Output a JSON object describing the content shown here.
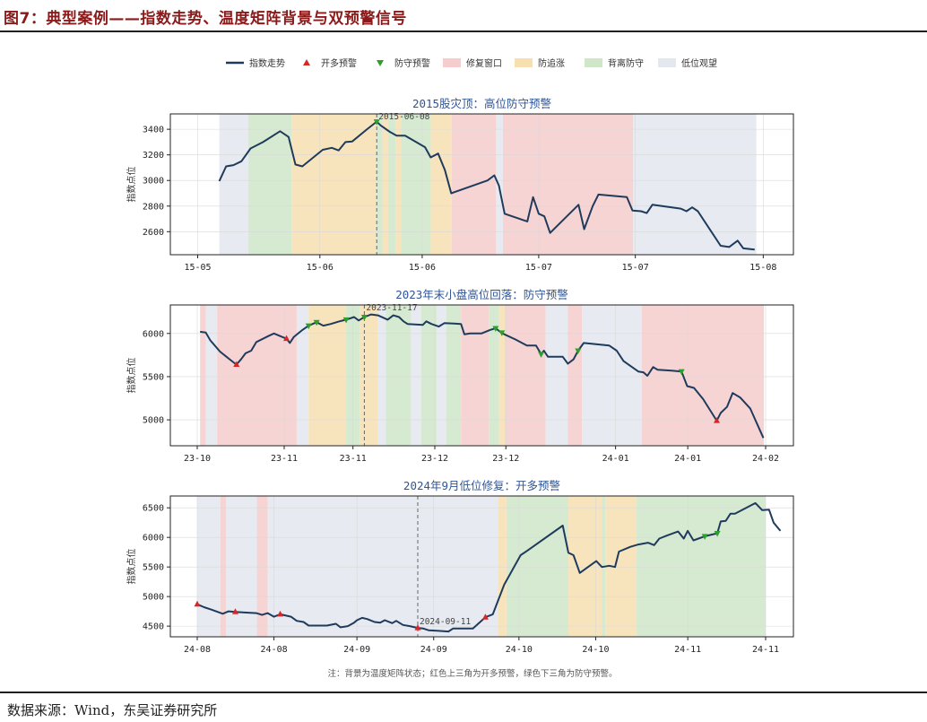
{
  "figure_title": "图7：典型案例——指数走势、温度矩阵背景与双预警信号",
  "source": "数据来源：Wind，东吴证券研究所",
  "note": "注：背景为温度矩阵状态；红色上三角为开多预警，绿色下三角为防守预警。",
  "legend": [
    {
      "label": "指数走势",
      "kind": "line",
      "color": "#1f3b5c"
    },
    {
      "label": "开多预警",
      "kind": "up",
      "color": "#d62728"
    },
    {
      "label": "防守预警",
      "kind": "down",
      "color": "#2ca02c"
    },
    {
      "label": "修复窗口",
      "kind": "patch",
      "color": "#f6cccc"
    },
    {
      "label": "防追涨",
      "kind": "patch",
      "color": "#f7dfb0"
    },
    {
      "label": "背离防守",
      "kind": "patch",
      "color": "#cfe6c9"
    },
    {
      "label": "低位观望",
      "kind": "patch",
      "color": "#e3e8ef"
    }
  ],
  "colors": {
    "line": "#1f3b5c",
    "buy": "#d62728",
    "sell": "#2ca02c",
    "repair": "#f6cccc",
    "chase": "#f7dfb0",
    "diverge": "#cfe6c9",
    "watch": "#e3e8ef",
    "title": "#2f5597"
  },
  "chart_data": [
    {
      "type": "line",
      "title": "2015股灾顶：高位防守预警",
      "ylabel": "指数点位",
      "xlim": [
        0,
        100
      ],
      "ylim": [
        2420,
        3520
      ],
      "yticks": [
        2600,
        2800,
        3000,
        3200,
        3400
      ],
      "xticks": [
        {
          "x": 0,
          "label": "15-05"
        },
        {
          "x": 21.5,
          "label": "15-06"
        },
        {
          "x": 39.5,
          "label": "15-06"
        },
        {
          "x": 60,
          "label": "15-07"
        },
        {
          "x": 77,
          "label": "15-07"
        },
        {
          "x": 99.5,
          "label": "15-08"
        }
      ],
      "vline": {
        "x": 31.5,
        "label": "2015-06-08"
      },
      "bands": [
        {
          "x0": 3.8,
          "x1": 8.9,
          "state": "watch"
        },
        {
          "x0": 8.9,
          "x1": 16.5,
          "state": "diverge"
        },
        {
          "x0": 16.5,
          "x1": 31.5,
          "state": "chase"
        },
        {
          "x0": 31.5,
          "x1": 32.5,
          "state": "diverge"
        },
        {
          "x0": 32.5,
          "x1": 33.5,
          "state": "chase"
        },
        {
          "x0": 33.5,
          "x1": 34.8,
          "state": "diverge"
        },
        {
          "x0": 34.8,
          "x1": 35.8,
          "state": "chase"
        },
        {
          "x0": 35.8,
          "x1": 41,
          "state": "diverge"
        },
        {
          "x0": 41,
          "x1": 44.7,
          "state": "chase"
        },
        {
          "x0": 44.7,
          "x1": 52.5,
          "state": "repair"
        },
        {
          "x0": 52.5,
          "x1": 53.7,
          "state": "watch"
        },
        {
          "x0": 53.7,
          "x1": 76.6,
          "state": "repair"
        },
        {
          "x0": 76.6,
          "x1": 98.3,
          "state": "watch"
        }
      ],
      "points": [
        [
          3.8,
          2995
        ],
        [
          5,
          3110
        ],
        [
          6.3,
          3120
        ],
        [
          7.7,
          3150
        ],
        [
          9.3,
          3250
        ],
        [
          11.5,
          3300
        ],
        [
          14.5,
          3385
        ],
        [
          16,
          3340
        ],
        [
          17.2,
          3125
        ],
        [
          18.4,
          3110
        ],
        [
          22,
          3240
        ],
        [
          23.6,
          3255
        ],
        [
          24.8,
          3235
        ],
        [
          26,
          3300
        ],
        [
          27.2,
          3305
        ],
        [
          29.8,
          3400
        ],
        [
          31.5,
          3460
        ],
        [
          32.2,
          3430
        ],
        [
          33.8,
          3380
        ],
        [
          35,
          3350
        ],
        [
          36.5,
          3350
        ],
        [
          40,
          3260
        ],
        [
          41,
          3180
        ],
        [
          42.3,
          3210
        ],
        [
          43.5,
          3080
        ],
        [
          44.6,
          2900
        ],
        [
          51,
          3000
        ],
        [
          52.2,
          3040
        ],
        [
          53,
          2960
        ],
        [
          54,
          2740
        ],
        [
          58,
          2680
        ],
        [
          59,
          2870
        ],
        [
          60,
          2740
        ],
        [
          61,
          2720
        ],
        [
          62,
          2590
        ],
        [
          67,
          2810
        ],
        [
          68,
          2620
        ],
        [
          69.5,
          2800
        ],
        [
          70.5,
          2890
        ],
        [
          75.5,
          2870
        ],
        [
          76.5,
          2765
        ],
        [
          78,
          2760
        ],
        [
          79,
          2745
        ],
        [
          80,
          2810
        ],
        [
          85,
          2780
        ],
        [
          86,
          2760
        ],
        [
          87,
          2790
        ],
        [
          88,
          2760
        ],
        [
          92,
          2490
        ],
        [
          93.5,
          2480
        ],
        [
          95,
          2530
        ],
        [
          96,
          2470
        ],
        [
          98,
          2460
        ]
      ],
      "buy": [],
      "sell": [
        [
          31.5,
          3460
        ]
      ]
    },
    {
      "type": "line",
      "title": "2023年末小盘高位回落：防守预警",
      "ylabel": "指数点位",
      "xlim": [
        0,
        100
      ],
      "ylim": [
        4700,
        6330
      ],
      "yticks": [
        5000,
        5500,
        6000
      ],
      "xticks": [
        {
          "x": 0,
          "label": "23-10"
        },
        {
          "x": 15.3,
          "label": "23-11"
        },
        {
          "x": 27.4,
          "label": "23-11"
        },
        {
          "x": 41.8,
          "label": "23-12"
        },
        {
          "x": 54.3,
          "label": "23-12"
        },
        {
          "x": 73.6,
          "label": "24-01"
        },
        {
          "x": 86.3,
          "label": "24-01"
        },
        {
          "x": 100,
          "label": "24-02"
        }
      ],
      "vline": {
        "x": 29.4,
        "label": "2023-11-17"
      },
      "bands": [
        {
          "x0": 0.5,
          "x1": 1.5,
          "state": "repair"
        },
        {
          "x0": 1.5,
          "x1": 3.5,
          "state": "watch"
        },
        {
          "x0": 3.5,
          "x1": 17.5,
          "state": "repair"
        },
        {
          "x0": 17.5,
          "x1": 19.6,
          "state": "watch"
        },
        {
          "x0": 19.6,
          "x1": 26.2,
          "state": "chase"
        },
        {
          "x0": 26.2,
          "x1": 28.6,
          "state": "diverge"
        },
        {
          "x0": 28.6,
          "x1": 31.8,
          "state": "chase"
        },
        {
          "x0": 31.8,
          "x1": 33.2,
          "state": "watch"
        },
        {
          "x0": 33.2,
          "x1": 37.6,
          "state": "diverge"
        },
        {
          "x0": 37.6,
          "x1": 39.4,
          "state": "watch"
        },
        {
          "x0": 39.4,
          "x1": 42.1,
          "state": "diverge"
        },
        {
          "x0": 42.1,
          "x1": 43.8,
          "state": "watch"
        },
        {
          "x0": 43.8,
          "x1": 46.4,
          "state": "diverge"
        },
        {
          "x0": 46.4,
          "x1": 51.3,
          "state": "repair"
        },
        {
          "x0": 51.3,
          "x1": 53.1,
          "state": "diverge"
        },
        {
          "x0": 53.1,
          "x1": 54.1,
          "state": "chase"
        },
        {
          "x0": 54.1,
          "x1": 61.3,
          "state": "repair"
        },
        {
          "x0": 61.3,
          "x1": 65.2,
          "state": "watch"
        },
        {
          "x0": 65.2,
          "x1": 67.7,
          "state": "repair"
        },
        {
          "x0": 67.7,
          "x1": 78.2,
          "state": "watch"
        },
        {
          "x0": 78.2,
          "x1": 99.7,
          "state": "repair"
        }
      ],
      "points": [
        [
          0.5,
          6020
        ],
        [
          1.5,
          6010
        ],
        [
          2.3,
          5920
        ],
        [
          4,
          5790
        ],
        [
          5.9,
          5690
        ],
        [
          6.9,
          5640
        ],
        [
          7.7,
          5700
        ],
        [
          8.5,
          5770
        ],
        [
          9.5,
          5800
        ],
        [
          10.4,
          5900
        ],
        [
          12.5,
          5970
        ],
        [
          13.5,
          6000
        ],
        [
          14.9,
          5960
        ],
        [
          15.7,
          5940
        ],
        [
          16.3,
          5890
        ],
        [
          17,
          5960
        ],
        [
          18.5,
          6040
        ],
        [
          19.6,
          6090
        ],
        [
          21,
          6130
        ],
        [
          22.2,
          6090
        ],
        [
          23.5,
          6110
        ],
        [
          25,
          6140
        ],
        [
          26.2,
          6160
        ],
        [
          27.6,
          6190
        ],
        [
          28.4,
          6150
        ],
        [
          29.4,
          6190
        ],
        [
          30.6,
          6220
        ],
        [
          31.8,
          6210
        ],
        [
          33.5,
          6160
        ],
        [
          34.5,
          6210
        ],
        [
          35.5,
          6190
        ],
        [
          36.3,
          6140
        ],
        [
          37,
          6110
        ],
        [
          39.7,
          6100
        ],
        [
          40.3,
          6140
        ],
        [
          41.2,
          6110
        ],
        [
          42.5,
          6080
        ],
        [
          43.5,
          6120
        ],
        [
          46.4,
          6110
        ],
        [
          47,
          5990
        ],
        [
          48,
          6000
        ],
        [
          50,
          6000
        ],
        [
          51.5,
          6040
        ],
        [
          52.5,
          6060
        ],
        [
          53.3,
          6020
        ],
        [
          54,
          5990
        ],
        [
          56,
          5930
        ],
        [
          58,
          5860
        ],
        [
          59.6,
          5860
        ],
        [
          60.5,
          5760
        ],
        [
          61,
          5800
        ],
        [
          61.7,
          5730
        ],
        [
          64.3,
          5730
        ],
        [
          65.2,
          5650
        ],
        [
          66.2,
          5700
        ],
        [
          67,
          5800
        ],
        [
          68,
          5890
        ],
        [
          72.5,
          5860
        ],
        [
          73.8,
          5800
        ],
        [
          75,
          5680
        ],
        [
          77.6,
          5560
        ],
        [
          78.5,
          5550
        ],
        [
          79.2,
          5510
        ],
        [
          80.2,
          5610
        ],
        [
          81,
          5580
        ],
        [
          83.5,
          5570
        ],
        [
          85.2,
          5560
        ],
        [
          86.2,
          5390
        ],
        [
          87.4,
          5370
        ],
        [
          89,
          5240
        ],
        [
          91.4,
          4990
        ],
        [
          92.1,
          5080
        ],
        [
          93.2,
          5150
        ],
        [
          94.2,
          5310
        ],
        [
          95.5,
          5260
        ],
        [
          97.3,
          5130
        ],
        [
          99.6,
          4790
        ]
      ],
      "buy": [
        [
          6.9,
          5640
        ],
        [
          15.7,
          5940
        ],
        [
          91.4,
          4990
        ]
      ],
      "sell": [
        [
          19.6,
          6090
        ],
        [
          21,
          6130
        ],
        [
          26.2,
          6160
        ],
        [
          29.4,
          6190
        ],
        [
          52.5,
          6060
        ],
        [
          53.6,
          6010
        ],
        [
          60.5,
          5760
        ],
        [
          67,
          5800
        ],
        [
          85.2,
          5560
        ]
      ]
    },
    {
      "type": "line",
      "title": "2024年9月低位修复：开多预警",
      "ylabel": "指数点位",
      "xlim": [
        0,
        100
      ],
      "ylim": [
        4320,
        6700
      ],
      "yticks": [
        4500,
        5000,
        5500,
        6000,
        6500
      ],
      "xticks": [
        {
          "x": 0,
          "label": "24-08"
        },
        {
          "x": 13.5,
          "label": "24-08"
        },
        {
          "x": 28.1,
          "label": "24-09"
        },
        {
          "x": 41.6,
          "label": "24-09"
        },
        {
          "x": 56.6,
          "label": "24-10"
        },
        {
          "x": 70.1,
          "label": "24-10"
        },
        {
          "x": 86.3,
          "label": "24-11"
        },
        {
          "x": 100,
          "label": "24-11"
        }
      ],
      "vline": {
        "x": 38.8,
        "label": "2024-09-11"
      },
      "bands": [
        {
          "x0": 0,
          "x1": 4.1,
          "state": "watch"
        },
        {
          "x0": 4.1,
          "x1": 5.1,
          "state": "repair"
        },
        {
          "x0": 5.1,
          "x1": 10.5,
          "state": "watch"
        },
        {
          "x0": 10.5,
          "x1": 12.4,
          "state": "repair"
        },
        {
          "x0": 12.4,
          "x1": 52.9,
          "state": "watch"
        },
        {
          "x0": 52.9,
          "x1": 54.4,
          "state": "chase"
        },
        {
          "x0": 54.4,
          "x1": 65.3,
          "state": "diverge"
        },
        {
          "x0": 65.3,
          "x1": 71.2,
          "state": "chase"
        },
        {
          "x0": 71.2,
          "x1": 71.8,
          "state": "diverge"
        },
        {
          "x0": 71.8,
          "x1": 77.3,
          "state": "chase"
        },
        {
          "x0": 77.3,
          "x1": 100,
          "state": "diverge"
        }
      ],
      "points": [
        [
          0,
          4870
        ],
        [
          1.2,
          4820
        ],
        [
          2.5,
          4780
        ],
        [
          4.5,
          4710
        ],
        [
          5.5,
          4750
        ],
        [
          6.7,
          4740
        ],
        [
          8.6,
          4730
        ],
        [
          10.4,
          4720
        ],
        [
          11.4,
          4690
        ],
        [
          12.4,
          4720
        ],
        [
          13.5,
          4660
        ],
        [
          14.6,
          4700
        ],
        [
          16.5,
          4660
        ],
        [
          17.5,
          4590
        ],
        [
          18.7,
          4570
        ],
        [
          19.6,
          4510
        ],
        [
          22.8,
          4510
        ],
        [
          24.4,
          4540
        ],
        [
          25.2,
          4480
        ],
        [
          26.5,
          4500
        ],
        [
          27.6,
          4560
        ],
        [
          28.1,
          4600
        ],
        [
          29,
          4640
        ],
        [
          29.9,
          4620
        ],
        [
          31.2,
          4570
        ],
        [
          32.2,
          4560
        ],
        [
          33,
          4600
        ],
        [
          34.3,
          4550
        ],
        [
          35,
          4590
        ],
        [
          36.2,
          4520
        ],
        [
          37.4,
          4500
        ],
        [
          38.8,
          4470
        ],
        [
          39.8,
          4460
        ],
        [
          40.7,
          4430
        ],
        [
          42.5,
          4420
        ],
        [
          44.2,
          4410
        ],
        [
          45,
          4460
        ],
        [
          48.5,
          4460
        ],
        [
          50.7,
          4650
        ],
        [
          52,
          4700
        ],
        [
          54,
          5200
        ],
        [
          56.9,
          5700
        ],
        [
          58,
          5770
        ],
        [
          64.3,
          6200
        ],
        [
          65.3,
          5740
        ],
        [
          66.2,
          5700
        ],
        [
          67.3,
          5400
        ],
        [
          70.2,
          5600
        ],
        [
          71.2,
          5500
        ],
        [
          72.5,
          5520
        ],
        [
          73.5,
          5500
        ],
        [
          74.2,
          5760
        ],
        [
          76.2,
          5840
        ],
        [
          77.6,
          5880
        ],
        [
          79.3,
          5910
        ],
        [
          80.4,
          5870
        ],
        [
          81.3,
          5980
        ],
        [
          82.6,
          6030
        ],
        [
          84.6,
          6100
        ],
        [
          85.6,
          5980
        ],
        [
          86.3,
          6110
        ],
        [
          87.3,
          5950
        ],
        [
          89.3,
          6020
        ],
        [
          91.5,
          6070
        ],
        [
          92.1,
          6270
        ],
        [
          93,
          6280
        ],
        [
          93.8,
          6400
        ],
        [
          94.6,
          6400
        ],
        [
          98.2,
          6580
        ],
        [
          99.4,
          6460
        ],
        [
          100.6,
          6470
        ],
        [
          101.4,
          6250
        ],
        [
          102.6,
          6110
        ]
      ],
      "buy": [
        [
          0,
          4870
        ],
        [
          6.7,
          4740
        ],
        [
          14.6,
          4700
        ],
        [
          38.8,
          4470
        ],
        [
          50.7,
          4650
        ]
      ],
      "sell": [
        [
          89.3,
          6020
        ],
        [
          91.5,
          6070
        ]
      ]
    }
  ]
}
